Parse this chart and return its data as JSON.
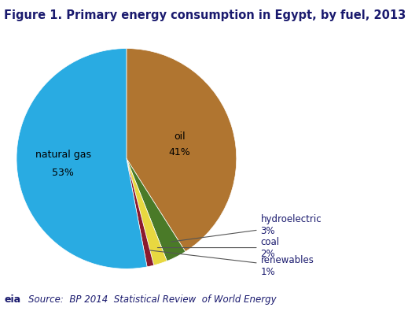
{
  "title": "Figure 1. Primary energy consumption in Egypt, by fuel, 2013",
  "slices": [
    {
      "label": "natural gas",
      "pct": 53,
      "color": "#29ABE2"
    },
    {
      "label": "oil",
      "pct": 41,
      "color": "#B07530"
    },
    {
      "label": "hydroelectric",
      "pct": 3,
      "color": "#4A7A28"
    },
    {
      "label": "coal",
      "pct": 2,
      "color": "#E8D840"
    },
    {
      "label": "renewables",
      "pct": 1,
      "color": "#8B1A2E"
    }
  ],
  "source_text": "Source:  BP 2014  Statistical Review  of World Energy",
  "background_color": "#ffffff",
  "title_fontsize": 10.5,
  "label_fontsize": 9,
  "source_fontsize": 8.5,
  "startangle": 90
}
